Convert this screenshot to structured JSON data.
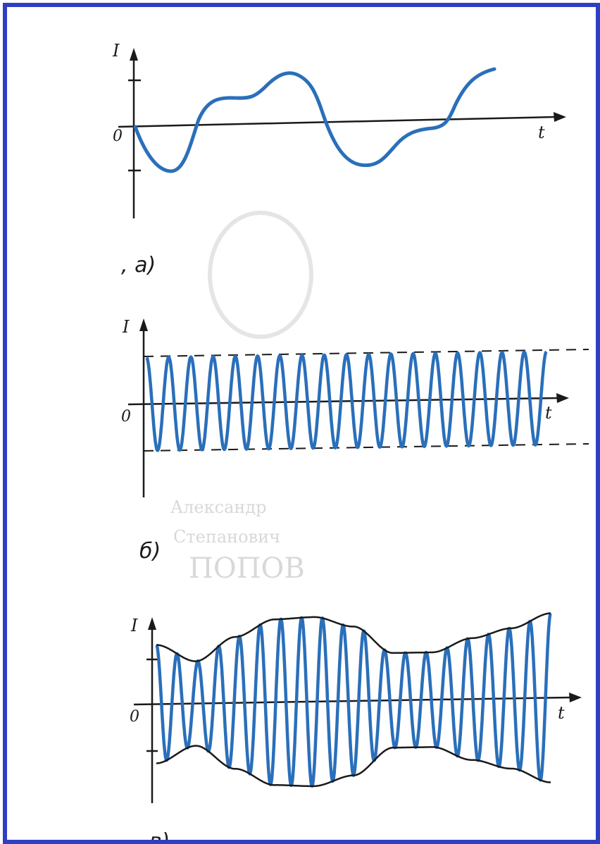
{
  "colors": {
    "border": "#2f3fc4",
    "wave": "#2a6fba",
    "axis": "#1a1a1a",
    "envelope": "#1a1a1a",
    "bleed": "#d4d4d4"
  },
  "diagrams": [
    {
      "id": "a",
      "caption": ", а)",
      "y_axis_label": "I",
      "x_axis_label": "t",
      "origin_label": "0",
      "description": "audio-frequency current signal"
    },
    {
      "id": "b",
      "caption": "б)",
      "y_axis_label": "I",
      "x_axis_label": "t",
      "origin_label": "0",
      "cycles": 18,
      "amplitude_fraction": 1.0
    },
    {
      "id": "c",
      "caption": "в)",
      "y_axis_label": "I",
      "x_axis_label": "t",
      "origin_label": "0",
      "cycles": 19,
      "envelope_levels": [
        0.7,
        0.5,
        0.78,
        0.98,
        1.0,
        0.88,
        0.56,
        0.56,
        0.72,
        0.83,
        1.0
      ]
    }
  ],
  "bleed_through_text": [
    "ПОПОВ",
    "Александр",
    "Степанович"
  ]
}
